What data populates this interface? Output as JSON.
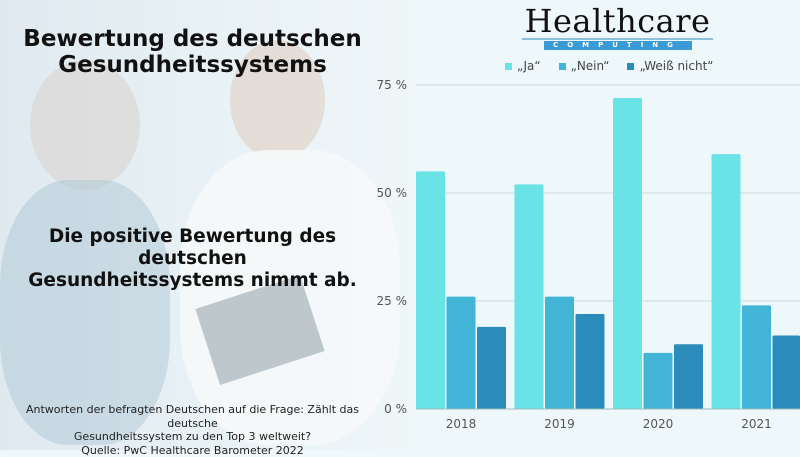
{
  "title": "Bewertung des deutschen Gesundheitssystems",
  "title_lines": [
    "Bewertung des deutschen",
    "Gesundheitssystems"
  ],
  "subtitle_lines": [
    "Die positive Bewertung des deutschen",
    "Gesundheitssystems nimmt ab."
  ],
  "note_lines": [
    "Antworten der befragten Deutschen auf die Frage: Zählt das deutsche",
    "Gesundheitssystem zu den Top 3 weltweit?",
    "Quelle: PwC Healthcare Barometer 2022"
  ],
  "logo": {
    "word": "Healthcare",
    "band": "COMPUTING"
  },
  "chart_data": {
    "type": "bar",
    "categories": [
      "2018",
      "2019",
      "2020",
      "2021"
    ],
    "series": [
      {
        "name": "„Ja“",
        "values": [
          55,
          52,
          72,
          59
        ],
        "color": "#6ae3e6"
      },
      {
        "name": "„Nein“",
        "values": [
          26,
          26,
          13,
          24
        ],
        "color": "#42b4d6"
      },
      {
        "name": "„Weiß nicht“",
        "values": [
          19,
          22,
          15,
          17
        ],
        "color": "#2b8bba"
      }
    ],
    "ylim": [
      0,
      75
    ],
    "yticks": [
      0,
      25,
      50,
      75
    ],
    "ytick_labels": [
      "0 %",
      "25 %",
      "50 %",
      "75 %"
    ],
    "grid": true,
    "legend": "top"
  }
}
